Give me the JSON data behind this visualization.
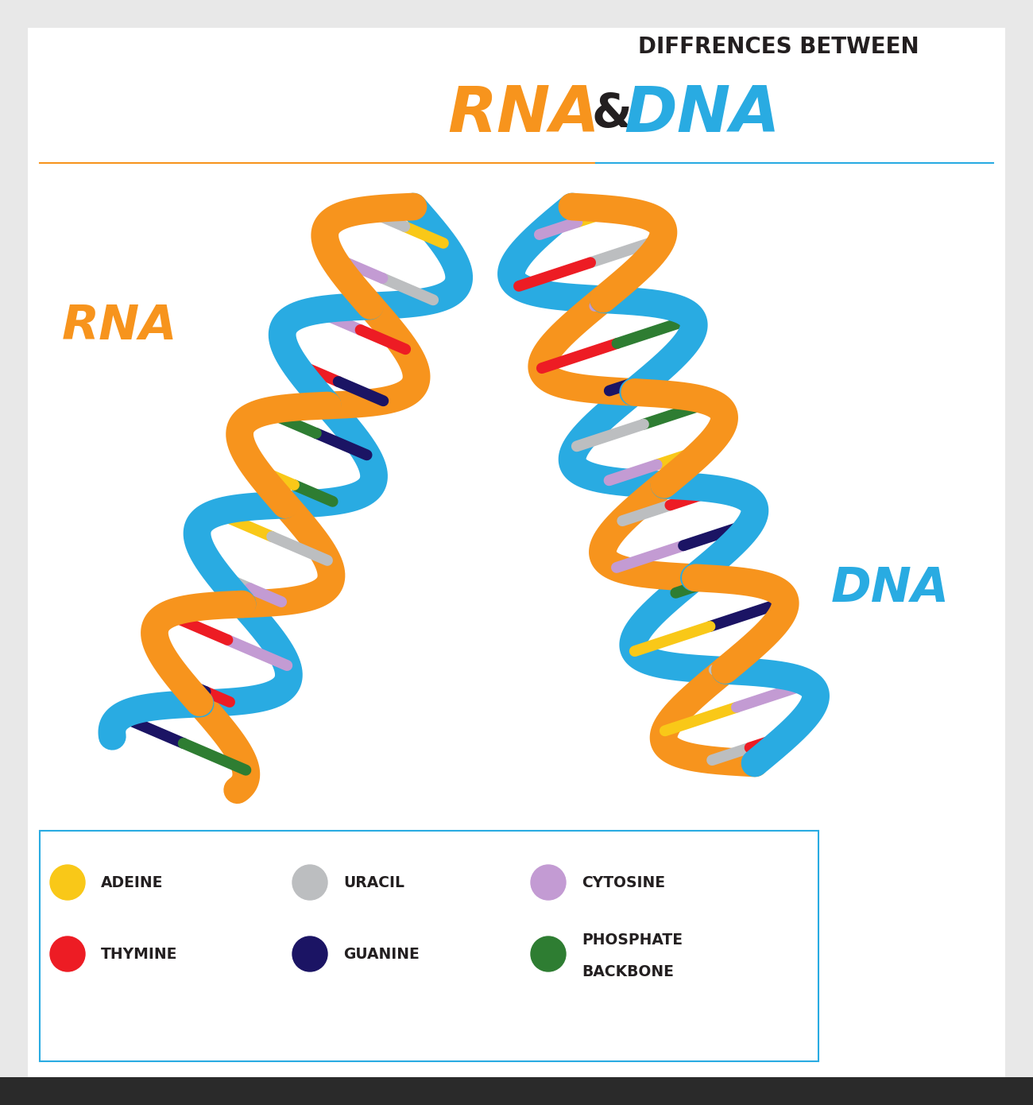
{
  "title_line1": "DIFFRENCES BETWEEN",
  "title_rna": "RNA",
  "title_amp": "&",
  "title_dna": "DNA",
  "rna_label": "RNA",
  "dna_label": "DNA",
  "orange_color": "#F7941D",
  "cyan_color": "#29ABE2",
  "black_color": "#231F20",
  "bg_color": "#E8E8E8",
  "white": "#FFFFFF",
  "legend_items": [
    {
      "label": "ADEINE",
      "color": "#F9C818",
      "col": 0,
      "row": 0
    },
    {
      "label": "THYMINE",
      "color": "#ED1C24",
      "col": 0,
      "row": 1
    },
    {
      "label": "URACIL",
      "color": "#BCBEC0",
      "col": 1,
      "row": 0
    },
    {
      "label": "GUANINE",
      "color": "#1B1464",
      "col": 1,
      "row": 1
    },
    {
      "label": "CYTOSINE",
      "color": "#C39BD3",
      "col": 2,
      "row": 0
    },
    {
      "label": "PHOSPHATE\nBACKBONE",
      "color": "#2E7D32",
      "col": 2,
      "row": 1
    }
  ],
  "rung_colors": [
    "#F9C818",
    "#BCBEC0",
    "#C39BD3",
    "#ED1C24",
    "#1B1464",
    "#2E7D32"
  ]
}
